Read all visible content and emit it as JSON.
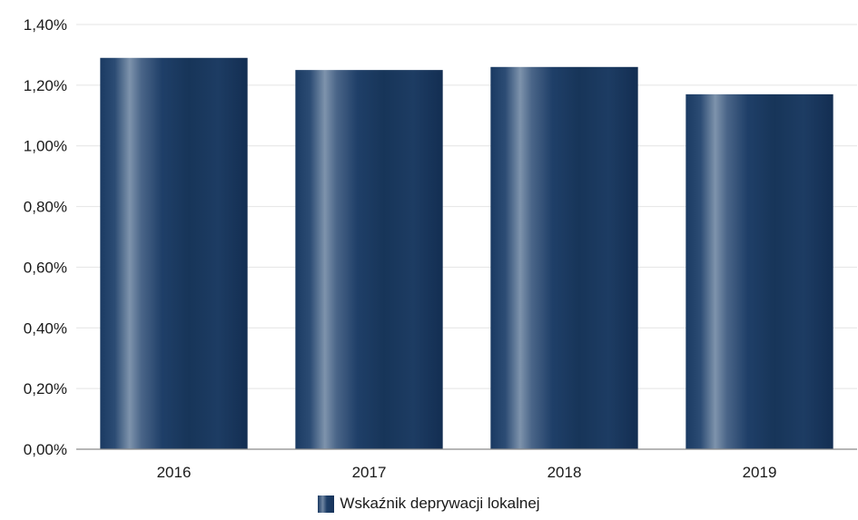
{
  "chart_data": {
    "type": "bar",
    "categories": [
      "2016",
      "2017",
      "2018",
      "2019"
    ],
    "series": [
      {
        "name": "Wskaźnik deprywacji lokalnej",
        "values": [
          1.29,
          1.25,
          1.26,
          1.17
        ],
        "color": "#1e3d64"
      }
    ],
    "yticks": [
      "0,00%",
      "0,20%",
      "0,40%",
      "0,60%",
      "0,80%",
      "1,00%",
      "1,20%",
      "1,40%"
    ],
    "ylim": [
      0,
      1.4
    ],
    "y_unit": "%",
    "grid": true,
    "legend_position": "bottom"
  }
}
